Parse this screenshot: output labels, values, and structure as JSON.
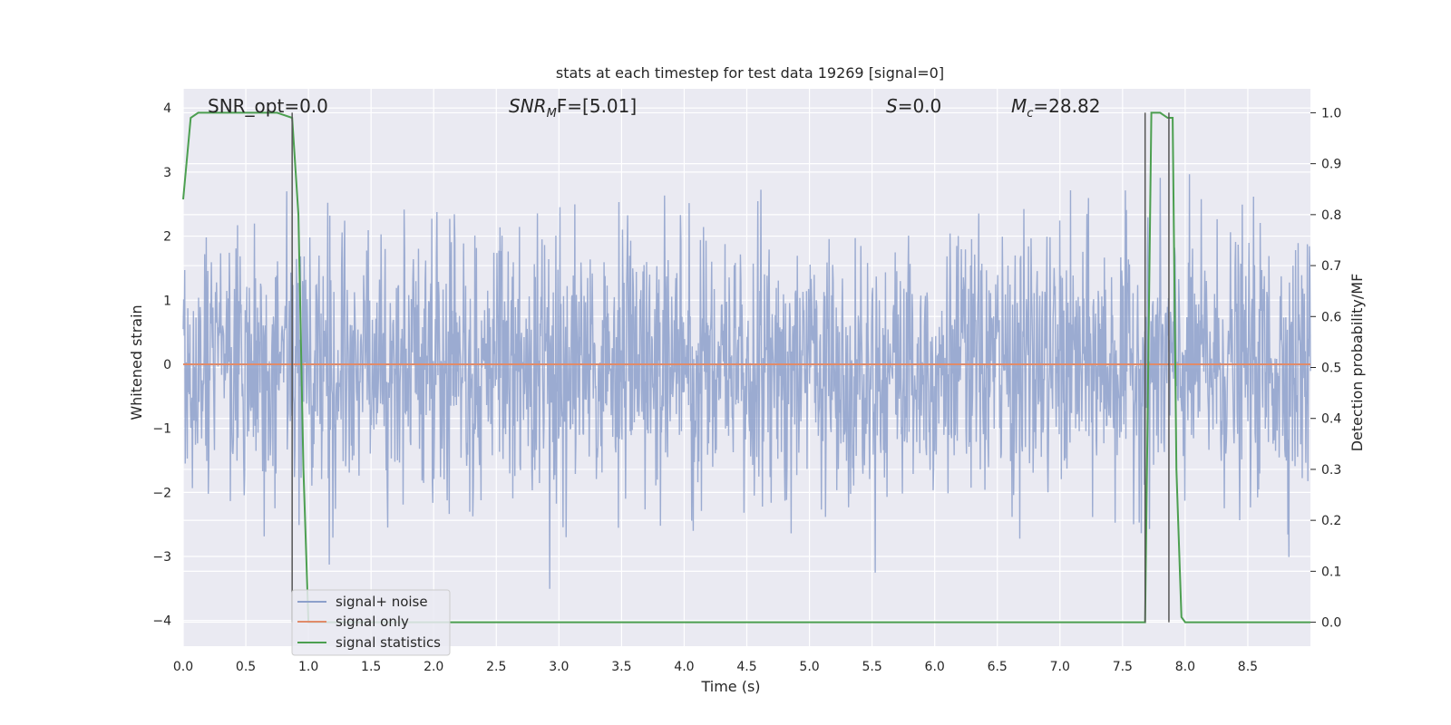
{
  "chart_data": {
    "type": "line",
    "title": "stats at each timestep for test data 19269 [signal=0]",
    "xlabel": "Time (s)",
    "ylabel_left": "Whitened strain",
    "ylabel_right": "Detection probability/MF",
    "xlim": [
      0.0,
      9.0
    ],
    "ylim_left": [
      -4.4,
      4.3
    ],
    "ylim_right": [
      -0.047,
      1.047
    ],
    "x_ticks": [
      "0.0",
      "0.5",
      "1.0",
      "1.5",
      "2.0",
      "2.5",
      "3.0",
      "3.5",
      "4.0",
      "4.5",
      "5.0",
      "5.5",
      "6.0",
      "6.5",
      "7.0",
      "7.5",
      "8.0",
      "8.5"
    ],
    "y_ticks_left": [
      "−4",
      "−3",
      "−2",
      "−1",
      "0",
      "1",
      "2",
      "3",
      "4"
    ],
    "y_ticks_right": [
      "0.0",
      "0.1",
      "0.2",
      "0.3",
      "0.4",
      "0.5",
      "0.6",
      "0.7",
      "0.8",
      "0.9",
      "1.0"
    ],
    "annotations": {
      "snr_opt": "SNR_opt=0.0",
      "snr_mf_main": "SNR",
      "snr_mf_sub": "M",
      "snr_mf_rest": "F=[5.01]",
      "s_main": "S",
      "s_rest": "=0.0",
      "mc_main": "M",
      "mc_sub": "c",
      "mc_rest": "=28.82"
    },
    "grid": true,
    "legend_position": "lower-left",
    "legend": [
      "signal+ noise",
      "signal only",
      "signal statistics"
    ],
    "series": [
      {
        "name": "signal+ noise",
        "axis": "left",
        "color": "#8da0cb",
        "kind": "noise",
        "amplitude_std": 1.0,
        "x_range": [
          0.0,
          9.0
        ]
      },
      {
        "name": "signal only",
        "axis": "left",
        "color": "#e08b6a",
        "x": [
          0.0,
          9.0
        ],
        "y": [
          0.0,
          0.0
        ]
      },
      {
        "name": "signal statistics",
        "axis": "right",
        "color": "#4c9f50",
        "x": [
          0.0,
          0.06,
          0.12,
          0.2,
          0.4,
          0.6,
          0.75,
          0.87,
          0.92,
          0.96,
          1.0,
          1.05,
          2.0,
          4.0,
          6.0,
          7.5,
          7.68,
          7.73,
          7.8,
          7.86,
          7.9,
          7.93,
          7.97,
          8.0,
          8.2,
          9.0
        ],
        "y": [
          0.83,
          0.99,
          1.0,
          1.0,
          1.0,
          1.0,
          1.0,
          0.99,
          0.8,
          0.3,
          0.0,
          0.0,
          0.0,
          0.0,
          0.0,
          0.0,
          0.0,
          1.0,
          1.0,
          0.99,
          0.99,
          0.3,
          0.01,
          0.0,
          0.0,
          0.0
        ]
      }
    ],
    "threshold_lines": [
      {
        "x": 0.87,
        "y_range": [
          0.0,
          1.0
        ]
      },
      {
        "x": 7.68,
        "y_range": [
          0.0,
          1.0
        ]
      },
      {
        "x": 7.87,
        "y_range": [
          0.0,
          1.0
        ]
      }
    ]
  }
}
